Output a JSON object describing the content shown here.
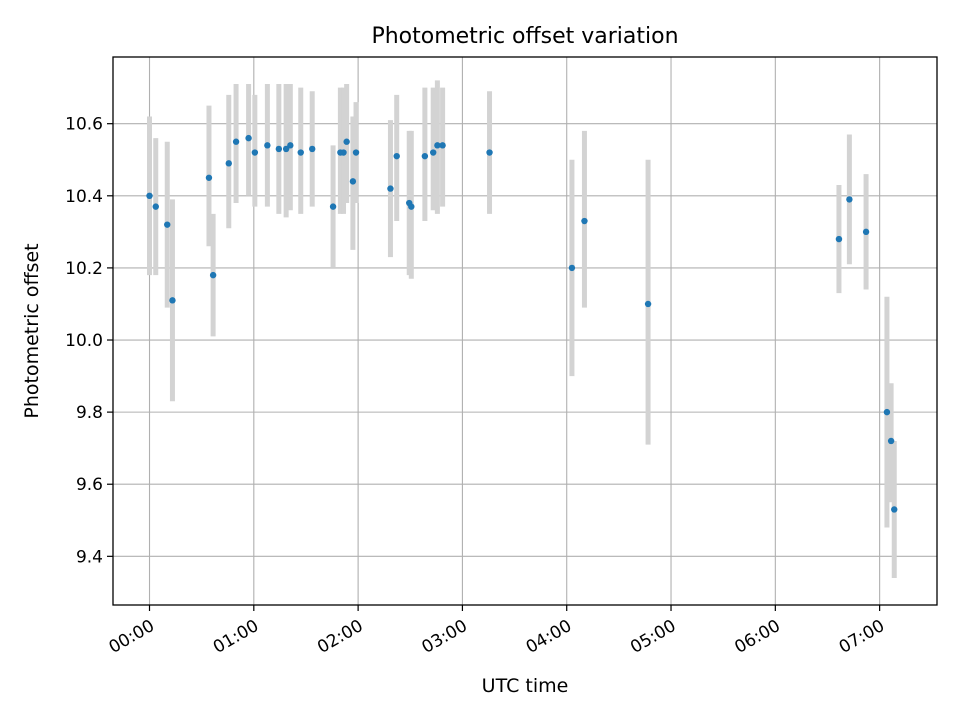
{
  "chart_data": {
    "type": "scatter",
    "title": "Photometric offset variation",
    "xlabel": "UTC time",
    "ylabel": "Photometric offset",
    "x_unit": "hours",
    "xlim": [
      -0.35,
      7.55
    ],
    "ylim": [
      9.265,
      10.785
    ],
    "xticks": [
      {
        "value": 0,
        "label": "00:00"
      },
      {
        "value": 1,
        "label": "01:00"
      },
      {
        "value": 2,
        "label": "02:00"
      },
      {
        "value": 3,
        "label": "03:00"
      },
      {
        "value": 4,
        "label": "04:00"
      },
      {
        "value": 5,
        "label": "05:00"
      },
      {
        "value": 6,
        "label": "06:00"
      },
      {
        "value": 7,
        "label": "07:00"
      }
    ],
    "yticks": [
      {
        "value": 9.4,
        "label": "9.4"
      },
      {
        "value": 9.6,
        "label": "9.6"
      },
      {
        "value": 9.8,
        "label": "9.8"
      },
      {
        "value": 10.0,
        "label": "10.0"
      },
      {
        "value": 10.2,
        "label": "10.2"
      },
      {
        "value": 10.4,
        "label": "10.4"
      },
      {
        "value": 10.6,
        "label": "10.6"
      }
    ],
    "grid": true,
    "colors": {
      "points": "#1f77b4",
      "errorbars": "#d3d3d3",
      "grid": "#b0b0b0"
    },
    "points": [
      {
        "x": 0.0,
        "y": 10.4,
        "lo": 10.18,
        "hi": 10.62
      },
      {
        "x": 0.06,
        "y": 10.37,
        "lo": 10.18,
        "hi": 10.56
      },
      {
        "x": 0.17,
        "y": 10.32,
        "lo": 10.09,
        "hi": 10.55
      },
      {
        "x": 0.22,
        "y": 10.11,
        "lo": 9.83,
        "hi": 10.39
      },
      {
        "x": 0.57,
        "y": 10.45,
        "lo": 10.26,
        "hi": 10.65
      },
      {
        "x": 0.61,
        "y": 10.18,
        "lo": 10.01,
        "hi": 10.35
      },
      {
        "x": 0.76,
        "y": 10.49,
        "lo": 10.31,
        "hi": 10.68
      },
      {
        "x": 0.83,
        "y": 10.55,
        "lo": 10.38,
        "hi": 10.71
      },
      {
        "x": 0.95,
        "y": 10.56,
        "lo": 10.4,
        "hi": 10.71
      },
      {
        "x": 1.01,
        "y": 10.52,
        "lo": 10.37,
        "hi": 10.68
      },
      {
        "x": 1.13,
        "y": 10.54,
        "lo": 10.37,
        "hi": 10.71
      },
      {
        "x": 1.24,
        "y": 10.53,
        "lo": 10.35,
        "hi": 10.71
      },
      {
        "x": 1.31,
        "y": 10.53,
        "lo": 10.34,
        "hi": 10.71
      },
      {
        "x": 1.35,
        "y": 10.54,
        "lo": 10.36,
        "hi": 10.71
      },
      {
        "x": 1.45,
        "y": 10.52,
        "lo": 10.35,
        "hi": 10.7
      },
      {
        "x": 1.56,
        "y": 10.53,
        "lo": 10.37,
        "hi": 10.69
      },
      {
        "x": 1.76,
        "y": 10.37,
        "lo": 10.2,
        "hi": 10.54
      },
      {
        "x": 1.83,
        "y": 10.52,
        "lo": 10.35,
        "hi": 10.7
      },
      {
        "x": 1.86,
        "y": 10.52,
        "lo": 10.35,
        "hi": 10.7
      },
      {
        "x": 1.89,
        "y": 10.55,
        "lo": 10.38,
        "hi": 10.71
      },
      {
        "x": 1.95,
        "y": 10.44,
        "lo": 10.25,
        "hi": 10.62
      },
      {
        "x": 1.98,
        "y": 10.52,
        "lo": 10.38,
        "hi": 10.66
      },
      {
        "x": 2.31,
        "y": 10.42,
        "lo": 10.23,
        "hi": 10.61
      },
      {
        "x": 2.37,
        "y": 10.51,
        "lo": 10.33,
        "hi": 10.68
      },
      {
        "x": 2.49,
        "y": 10.38,
        "lo": 10.18,
        "hi": 10.58
      },
      {
        "x": 2.51,
        "y": 10.37,
        "lo": 10.17,
        "hi": 10.58
      },
      {
        "x": 2.64,
        "y": 10.51,
        "lo": 10.33,
        "hi": 10.7
      },
      {
        "x": 2.72,
        "y": 10.52,
        "lo": 10.36,
        "hi": 10.7
      },
      {
        "x": 2.76,
        "y": 10.54,
        "lo": 10.35,
        "hi": 10.72
      },
      {
        "x": 2.81,
        "y": 10.54,
        "lo": 10.37,
        "hi": 10.7
      },
      {
        "x": 3.26,
        "y": 10.52,
        "lo": 10.35,
        "hi": 10.69
      },
      {
        "x": 4.05,
        "y": 10.2,
        "lo": 9.9,
        "hi": 10.5
      },
      {
        "x": 4.17,
        "y": 10.33,
        "lo": 10.09,
        "hi": 10.58
      },
      {
        "x": 4.78,
        "y": 10.1,
        "lo": 9.71,
        "hi": 10.5
      },
      {
        "x": 6.61,
        "y": 10.28,
        "lo": 10.13,
        "hi": 10.43
      },
      {
        "x": 6.71,
        "y": 10.39,
        "lo": 10.21,
        "hi": 10.57
      },
      {
        "x": 6.87,
        "y": 10.3,
        "lo": 10.14,
        "hi": 10.46
      },
      {
        "x": 7.07,
        "y": 9.8,
        "lo": 9.48,
        "hi": 10.12
      },
      {
        "x": 7.11,
        "y": 9.72,
        "lo": 9.55,
        "hi": 9.88
      },
      {
        "x": 7.14,
        "y": 9.53,
        "lo": 9.34,
        "hi": 9.72
      }
    ]
  }
}
